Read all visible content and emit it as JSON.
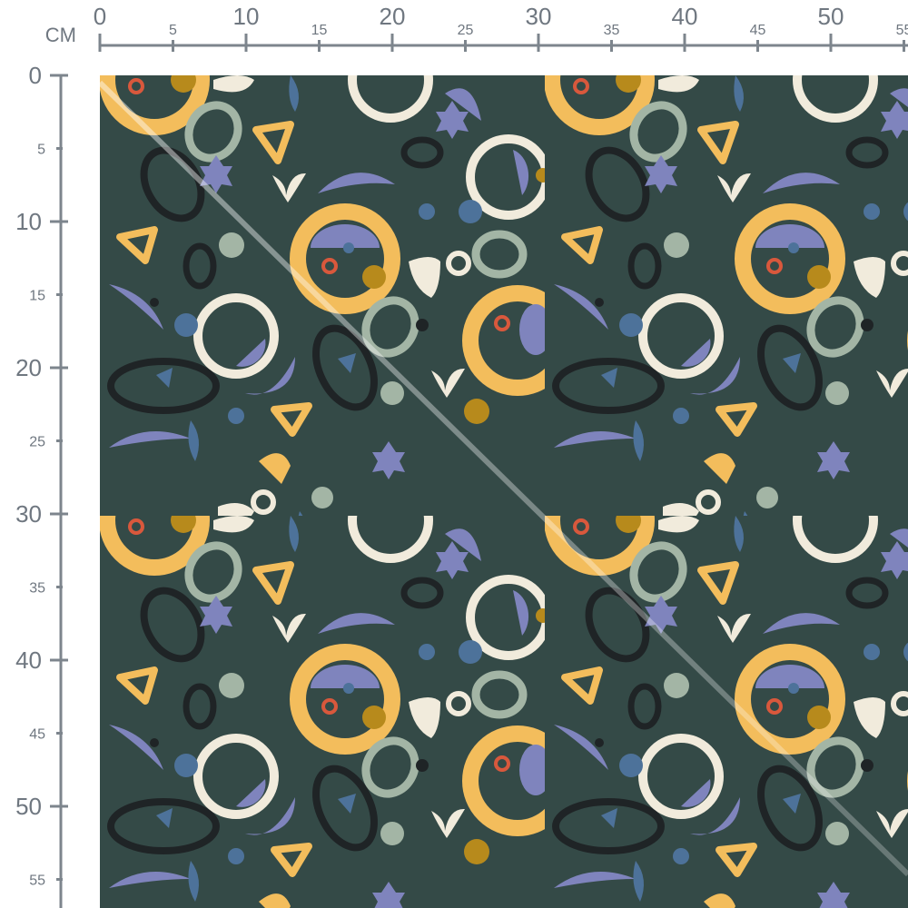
{
  "ruler": {
    "unit": "CM",
    "top_labels": [
      0,
      5,
      10,
      15,
      20,
      25,
      30,
      35,
      40,
      45,
      50,
      55
    ],
    "left_labels": [
      0,
      5,
      10,
      15,
      20,
      25,
      30,
      35,
      40,
      45,
      50,
      55
    ]
  },
  "fabric": {
    "pattern": "abstract shapes",
    "colors": {
      "background": "#344a47",
      "yellow": "#f3bd5c",
      "cream": "#f1ebdc",
      "sage": "#a3b5a5",
      "lavender": "#7f84bd",
      "blue": "#4d729a",
      "black": "#1f2426",
      "mustard": "#b78a1c",
      "red": "#d9583c"
    }
  }
}
